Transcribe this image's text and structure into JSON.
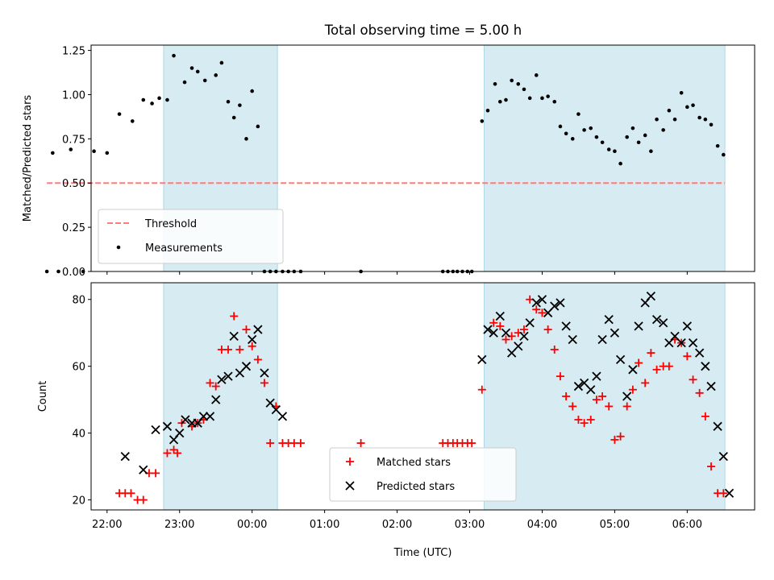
{
  "title": "Total observing time = 5.00 h",
  "chart_data": [
    {
      "type": "scatter",
      "panel": "top",
      "ylabel": "Matched/Predicted stars",
      "ylim": [
        0,
        1.28
      ],
      "yticks": [
        "0.00",
        "0.25",
        "0.50",
        "0.75",
        "1.00",
        "1.25"
      ],
      "ytick_values": [
        0,
        0.25,
        0.5,
        0.75,
        1.0,
        1.25
      ],
      "legend": {
        "placement": "lower-left",
        "items": [
          "Threshold",
          "Measurements"
        ]
      },
      "shaded_intervals_h": [
        [
          22.78,
          24.35
        ],
        [
          27.2,
          30.52
        ]
      ],
      "threshold": {
        "name": "Threshold",
        "value": 0.5,
        "x_range_h": [
          21.17,
          30.52
        ],
        "color": "#ff7b7b"
      },
      "series": [
        {
          "name": "Measurements",
          "color": "#000000",
          "x_h": [
            21.17,
            21.25,
            21.33,
            21.5,
            21.67,
            21.82,
            22.0,
            22.17,
            22.35,
            22.5,
            22.62,
            22.72,
            22.83,
            22.92,
            23.07,
            23.17,
            23.25,
            23.35,
            23.5,
            23.58,
            23.67,
            23.75,
            23.83,
            23.92,
            24.0,
            24.08,
            24.17,
            24.25,
            24.33,
            24.42,
            24.5,
            24.58,
            24.67,
            25.5,
            26.63,
            26.7,
            26.77,
            26.83,
            26.9,
            26.97,
            27.03,
            27.17,
            27.25,
            27.35,
            27.42,
            27.5,
            27.58,
            27.67,
            27.75,
            27.83,
            27.92,
            28.0,
            28.08,
            28.17,
            28.25,
            28.33,
            28.42,
            28.5,
            28.58,
            28.67,
            28.75,
            28.83,
            28.92,
            29.0,
            29.08,
            29.17,
            29.25,
            29.33,
            29.42,
            29.5,
            29.58,
            29.67,
            29.75,
            29.83,
            29.92,
            30.0,
            30.08,
            30.17,
            30.25,
            30.33,
            30.42,
            30.5
          ],
          "y": [
            0.0,
            0.67,
            0.0,
            0.69,
            0.0,
            0.68,
            0.67,
            0.89,
            0.85,
            0.97,
            0.95,
            0.98,
            0.97,
            1.22,
            1.07,
            1.15,
            1.13,
            1.08,
            1.11,
            1.18,
            0.96,
            0.87,
            0.94,
            0.75,
            1.02,
            0.82,
            0.0,
            0.0,
            0.0,
            0.0,
            0.0,
            0.0,
            0.0,
            0.0,
            0.0,
            0.0,
            0.0,
            0.0,
            0.0,
            0.0,
            0.0,
            0.85,
            0.91,
            1.06,
            0.96,
            0.97,
            1.08,
            1.06,
            1.03,
            0.98,
            1.11,
            0.98,
            0.99,
            0.96,
            0.82,
            0.78,
            0.75,
            0.89,
            0.8,
            0.81,
            0.76,
            0.73,
            0.69,
            0.68,
            0.61,
            0.76,
            0.81,
            0.73,
            0.77,
            0.68,
            0.86,
            0.8,
            0.91,
            0.86,
            1.01,
            0.93,
            0.94,
            0.87,
            0.86,
            0.83,
            0.71,
            0.66
          ]
        }
      ]
    },
    {
      "type": "scatter",
      "panel": "bottom",
      "xlabel": "Time (UTC)",
      "ylabel": "Count",
      "ylim": [
        17,
        85
      ],
      "yticks": [
        "20",
        "40",
        "60",
        "80"
      ],
      "ytick_values": [
        20,
        40,
        60,
        80
      ],
      "xlim_h": [
        21.78,
        30.93
      ],
      "xticks": [
        "22:00",
        "23:00",
        "00:00",
        "01:00",
        "02:00",
        "03:00",
        "04:00",
        "05:00",
        "06:00"
      ],
      "xtick_values_h": [
        22,
        23,
        24,
        25,
        26,
        27,
        28,
        29,
        30
      ],
      "legend": {
        "placement": "lower-center",
        "items": [
          "Matched stars",
          "Predicted stars"
        ]
      },
      "shaded_intervals_h": [
        [
          22.78,
          24.35
        ],
        [
          27.2,
          30.52
        ]
      ],
      "series": [
        {
          "name": "Matched stars",
          "marker": "+",
          "color": "#ff0000",
          "x_h": [
            22.17,
            22.25,
            22.33,
            22.42,
            22.5,
            22.58,
            22.67,
            22.83,
            22.92,
            22.97,
            23.03,
            23.17,
            23.25,
            23.33,
            23.42,
            23.5,
            23.58,
            23.67,
            23.75,
            23.83,
            23.92,
            24.0,
            24.08,
            24.17,
            24.25,
            24.33,
            24.42,
            24.5,
            24.58,
            24.67,
            25.5,
            26.63,
            26.7,
            26.77,
            26.83,
            26.9,
            26.97,
            27.03,
            27.17,
            27.33,
            27.42,
            27.5,
            27.58,
            27.67,
            27.75,
            27.83,
            27.92,
            28.0,
            28.08,
            28.17,
            28.25,
            28.33,
            28.42,
            28.5,
            28.58,
            28.67,
            28.75,
            28.83,
            28.92,
            29.0,
            29.08,
            29.17,
            29.25,
            29.33,
            29.42,
            29.5,
            29.58,
            29.67,
            29.75,
            29.83,
            29.92,
            30.0,
            30.08,
            30.17,
            30.25,
            30.33,
            30.42,
            30.5
          ],
          "y": [
            22,
            22,
            22,
            20,
            20,
            28,
            28,
            34,
            35,
            34,
            43,
            42,
            43,
            44,
            55,
            54,
            65,
            65,
            75,
            65,
            71,
            66,
            62,
            55,
            37,
            48,
            37,
            37,
            37,
            37,
            37,
            37,
            37,
            37,
            37,
            37,
            37,
            37,
            53,
            73,
            72,
            68,
            69,
            70,
            71,
            80,
            77,
            76,
            71,
            65,
            57,
            51,
            48,
            44,
            43,
            44,
            50,
            51,
            48,
            38,
            39,
            48,
            53,
            61,
            55,
            64,
            59,
            60,
            60,
            68,
            67,
            63,
            56,
            52,
            45,
            30,
            22,
            22
          ]
        },
        {
          "name": "Predicted stars",
          "marker": "x",
          "color": "#000000",
          "x_h": [
            22.25,
            22.5,
            22.67,
            22.83,
            22.92,
            23.0,
            23.08,
            23.17,
            23.25,
            23.33,
            23.42,
            23.5,
            23.58,
            23.67,
            23.75,
            23.83,
            23.92,
            24.0,
            24.08,
            24.17,
            24.25,
            24.33,
            24.42,
            27.17,
            27.25,
            27.33,
            27.42,
            27.5,
            27.58,
            27.67,
            27.75,
            27.83,
            27.92,
            28.0,
            28.08,
            28.17,
            28.25,
            28.33,
            28.42,
            28.5,
            28.58,
            28.67,
            28.75,
            28.83,
            28.92,
            29.0,
            29.08,
            29.17,
            29.25,
            29.33,
            29.42,
            29.5,
            29.58,
            29.67,
            29.75,
            29.83,
            29.92,
            30.0,
            30.08,
            30.17,
            30.25,
            30.33,
            30.42,
            30.5,
            30.58
          ],
          "y": [
            33,
            29,
            41,
            42,
            38,
            40,
            44,
            43,
            43,
            45,
            45,
            50,
            56,
            57,
            69,
            58,
            60,
            68,
            71,
            58,
            49,
            47,
            45,
            62,
            71,
            70,
            75,
            70,
            64,
            66,
            69,
            73,
            79,
            80,
            76,
            78,
            79,
            72,
            68,
            54,
            55,
            53,
            57,
            68,
            74,
            70,
            62,
            51,
            59,
            72,
            79,
            81,
            74,
            73,
            67,
            69,
            67,
            72,
            67,
            64,
            60,
            54,
            42,
            33,
            22
          ]
        }
      ]
    }
  ]
}
